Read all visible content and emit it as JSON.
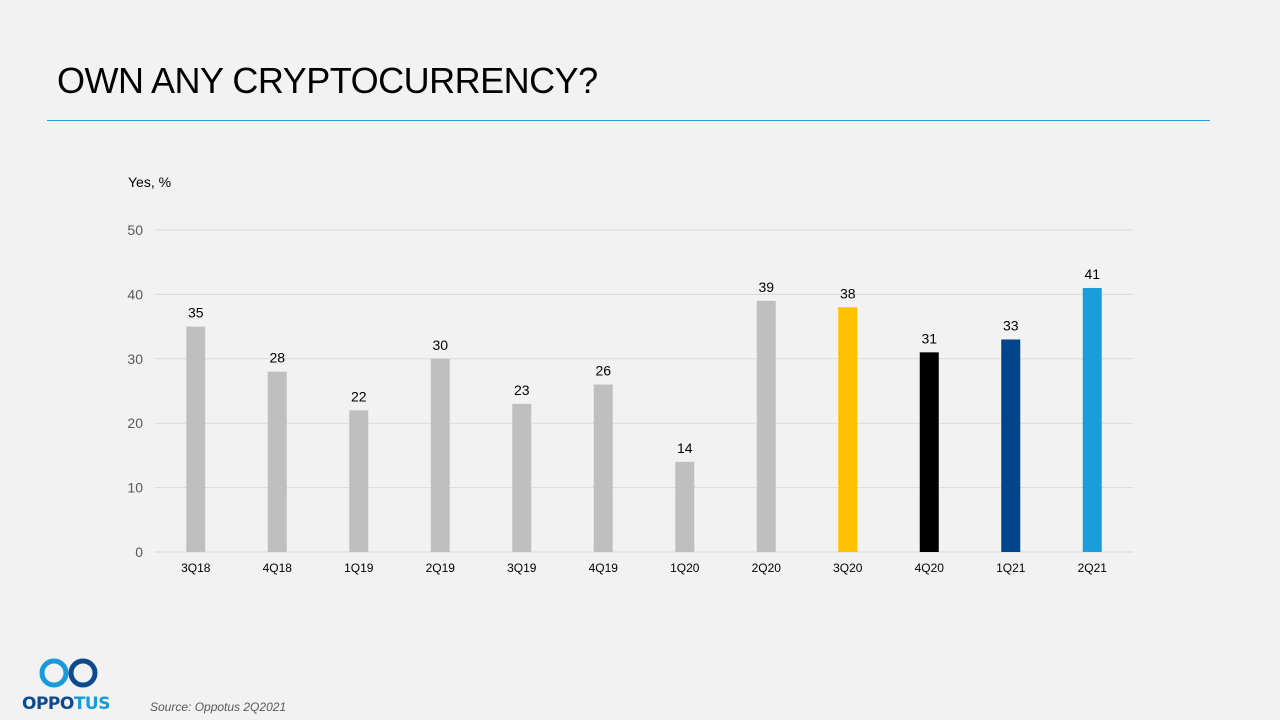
{
  "slide": {
    "title": "OWN ANY CRYPTOCURRENCY?",
    "source": "Source: Oppotus 2Q2021",
    "logo": {
      "text_part1": "OPPO",
      "text_part2": "TUS",
      "icon": "infinity-rings-icon"
    },
    "colors": {
      "rule": "#2e9ad6",
      "logo_dark": "#0d4a8e",
      "logo_light": "#1a9ad8"
    }
  },
  "chart_data": {
    "type": "bar",
    "title": "OWN ANY CRYPTOCURRENCY?",
    "ylabel": "Yes, %",
    "xlabel": "",
    "ylim": [
      0,
      50
    ],
    "yticks": [
      0,
      10,
      20,
      30,
      40,
      50
    ],
    "grid": true,
    "legend": "none",
    "categories": [
      "3Q18",
      "4Q18",
      "1Q19",
      "2Q19",
      "3Q19",
      "4Q19",
      "1Q20",
      "2Q20",
      "3Q20",
      "4Q20",
      "1Q21",
      "2Q21"
    ],
    "values": [
      35,
      28,
      22,
      30,
      23,
      26,
      14,
      39,
      38,
      31,
      33,
      41
    ],
    "bar_colors": [
      "#bfbfbf",
      "#bfbfbf",
      "#bfbfbf",
      "#bfbfbf",
      "#bfbfbf",
      "#bfbfbf",
      "#bfbfbf",
      "#bfbfbf",
      "#ffc000",
      "#000000",
      "#00448a",
      "#1a9ed9"
    ],
    "data_labels": true
  }
}
